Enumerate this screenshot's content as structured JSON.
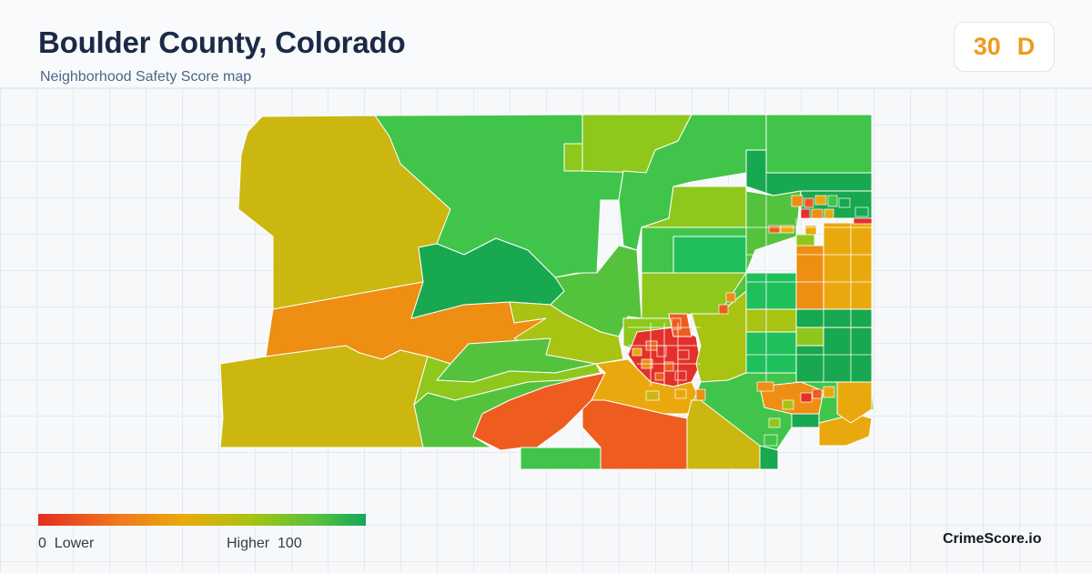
{
  "header": {
    "title": "Boulder County, Colorado",
    "subtitle": "Neighborhood Safety Score map"
  },
  "score": {
    "value": "30",
    "grade": "D",
    "color": "#ee9a1d"
  },
  "legend": {
    "min_value": "0",
    "min_label": "Lower",
    "max_label": "Higher",
    "max_value": "100",
    "colors": [
      "#e32d24",
      "#f0791c",
      "#e9ab0e",
      "#a8c312",
      "#55c23e",
      "#16a75a"
    ]
  },
  "brand": "CrimeScore.io",
  "map_colors": {
    "yellow": "#cbb70f",
    "orange": "#ee8e12",
    "red_orange": "#ee5c20",
    "red": "#e3302a",
    "light_green": "#8ec81c",
    "green": "#41c44a",
    "dark_green": "#18a84f",
    "amber": "#e9a90e",
    "lime": "#a8c312"
  }
}
